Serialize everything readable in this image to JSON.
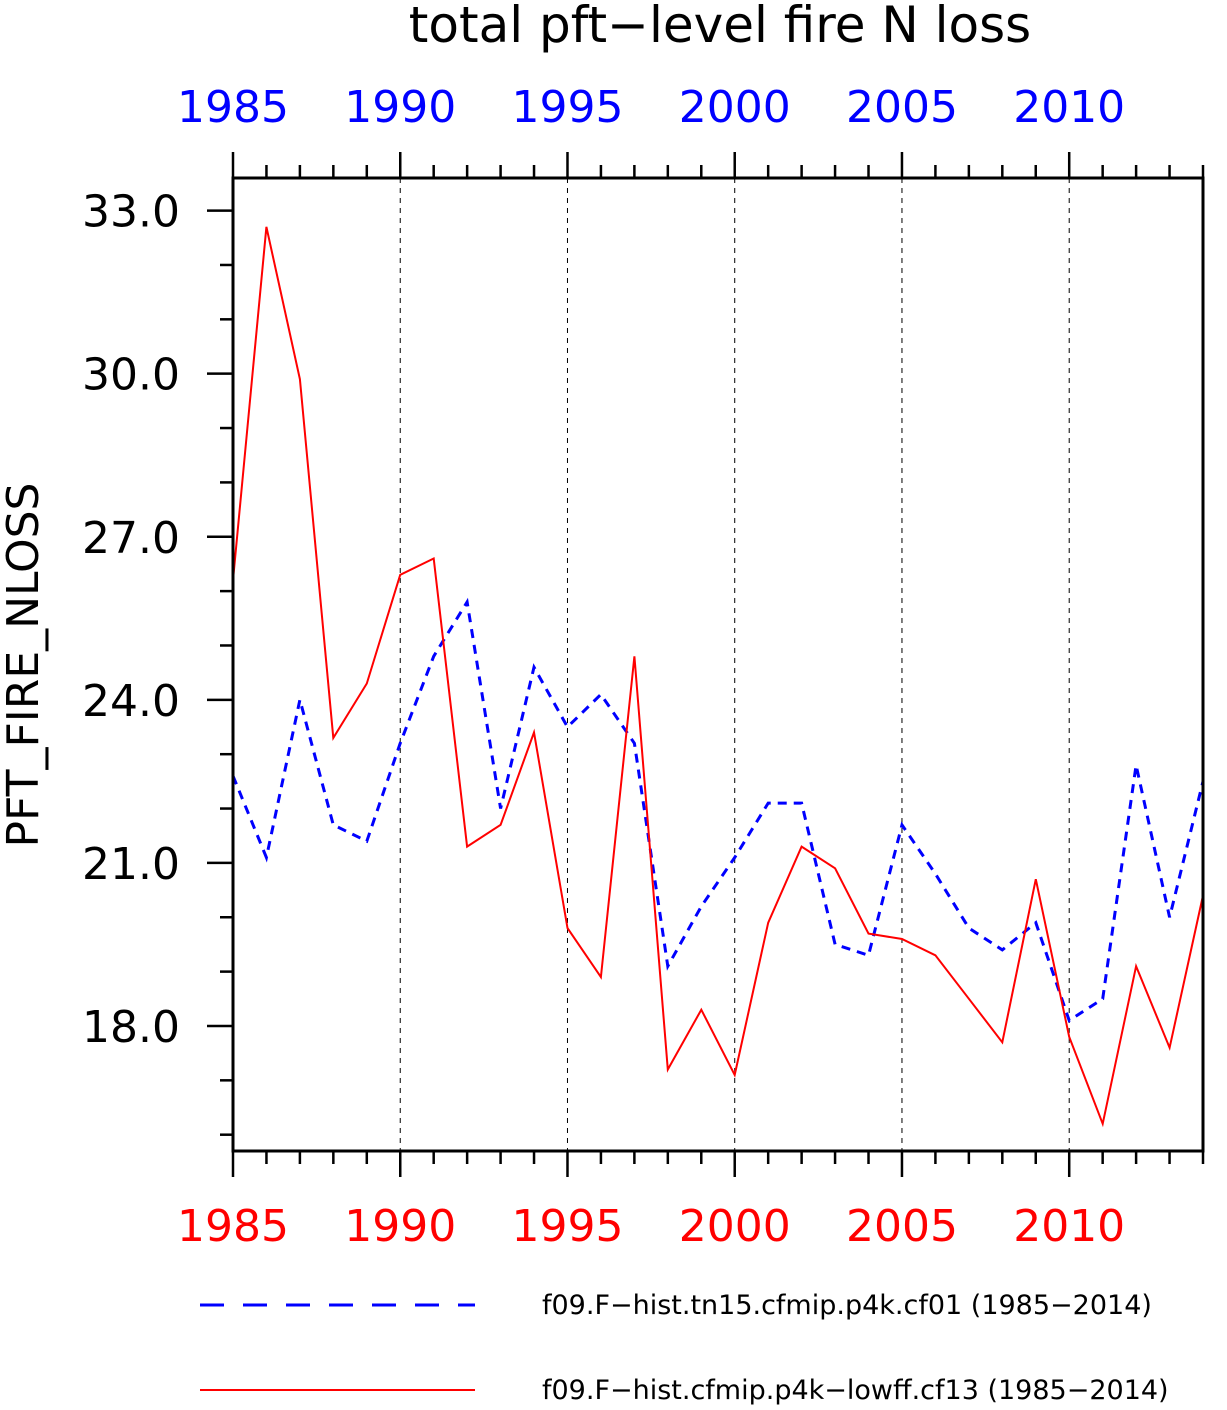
{
  "chart_data": {
    "type": "line",
    "title": "total pft−level fire N loss",
    "ylabel": "PFT_FIRE_NLOSS",
    "xlabel": "",
    "x": [
      1985,
      1986,
      1987,
      1988,
      1989,
      1990,
      1991,
      1992,
      1993,
      1994,
      1995,
      1996,
      1997,
      1998,
      1999,
      2000,
      2001,
      2002,
      2003,
      2004,
      2005,
      2006,
      2007,
      2008,
      2009,
      2010,
      2011,
      2012,
      2013,
      2014
    ],
    "xlim": [
      1985,
      2014
    ],
    "ylim": [
      15.7,
      33.6
    ],
    "x_tick_labels": [
      "1985",
      "1990",
      "1995",
      "2000",
      "2005",
      "2010"
    ],
    "x_tick_values": [
      1985,
      1990,
      1995,
      2000,
      2005,
      2010
    ],
    "x_minor_step": 1,
    "y_tick_labels": [
      "18.0",
      "21.0",
      "24.0",
      "27.0",
      "30.0",
      "33.0"
    ],
    "y_tick_values": [
      18,
      21,
      24,
      27,
      30,
      33
    ],
    "y_minor_step": 1,
    "grid": "vertical dashed at major x ticks",
    "legend_position": "bottom",
    "top_axis_color": "#0000ff",
    "bottom_axis_color": "#ff0000",
    "series": [
      {
        "name": "f09.F−hist.tn15.cfmip.p4k.cf01 (1985−2014)",
        "color": "#0000ff",
        "style": "dashed",
        "values": [
          22.6,
          21.1,
          24.0,
          21.7,
          21.4,
          23.2,
          24.8,
          25.8,
          22.0,
          24.6,
          23.5,
          24.1,
          23.2,
          19.1,
          20.2,
          21.1,
          22.1,
          22.1,
          19.5,
          19.3,
          21.7,
          20.8,
          19.8,
          19.4,
          19.9,
          18.1,
          18.5,
          22.8,
          20.0,
          22.5
        ]
      },
      {
        "name": "f09.F−hist.cfmip.p4k−lowff.cf13 (1985−2014)",
        "color": "#ff0000",
        "style": "solid",
        "values": [
          26.2,
          32.7,
          29.9,
          23.3,
          24.3,
          26.3,
          26.6,
          21.3,
          21.7,
          23.4,
          19.8,
          18.9,
          24.8,
          17.2,
          18.3,
          17.1,
          19.9,
          21.3,
          20.9,
          19.7,
          19.6,
          19.3,
          18.5,
          17.7,
          20.7,
          17.8,
          16.2,
          19.1,
          17.6,
          20.4
        ]
      }
    ]
  }
}
